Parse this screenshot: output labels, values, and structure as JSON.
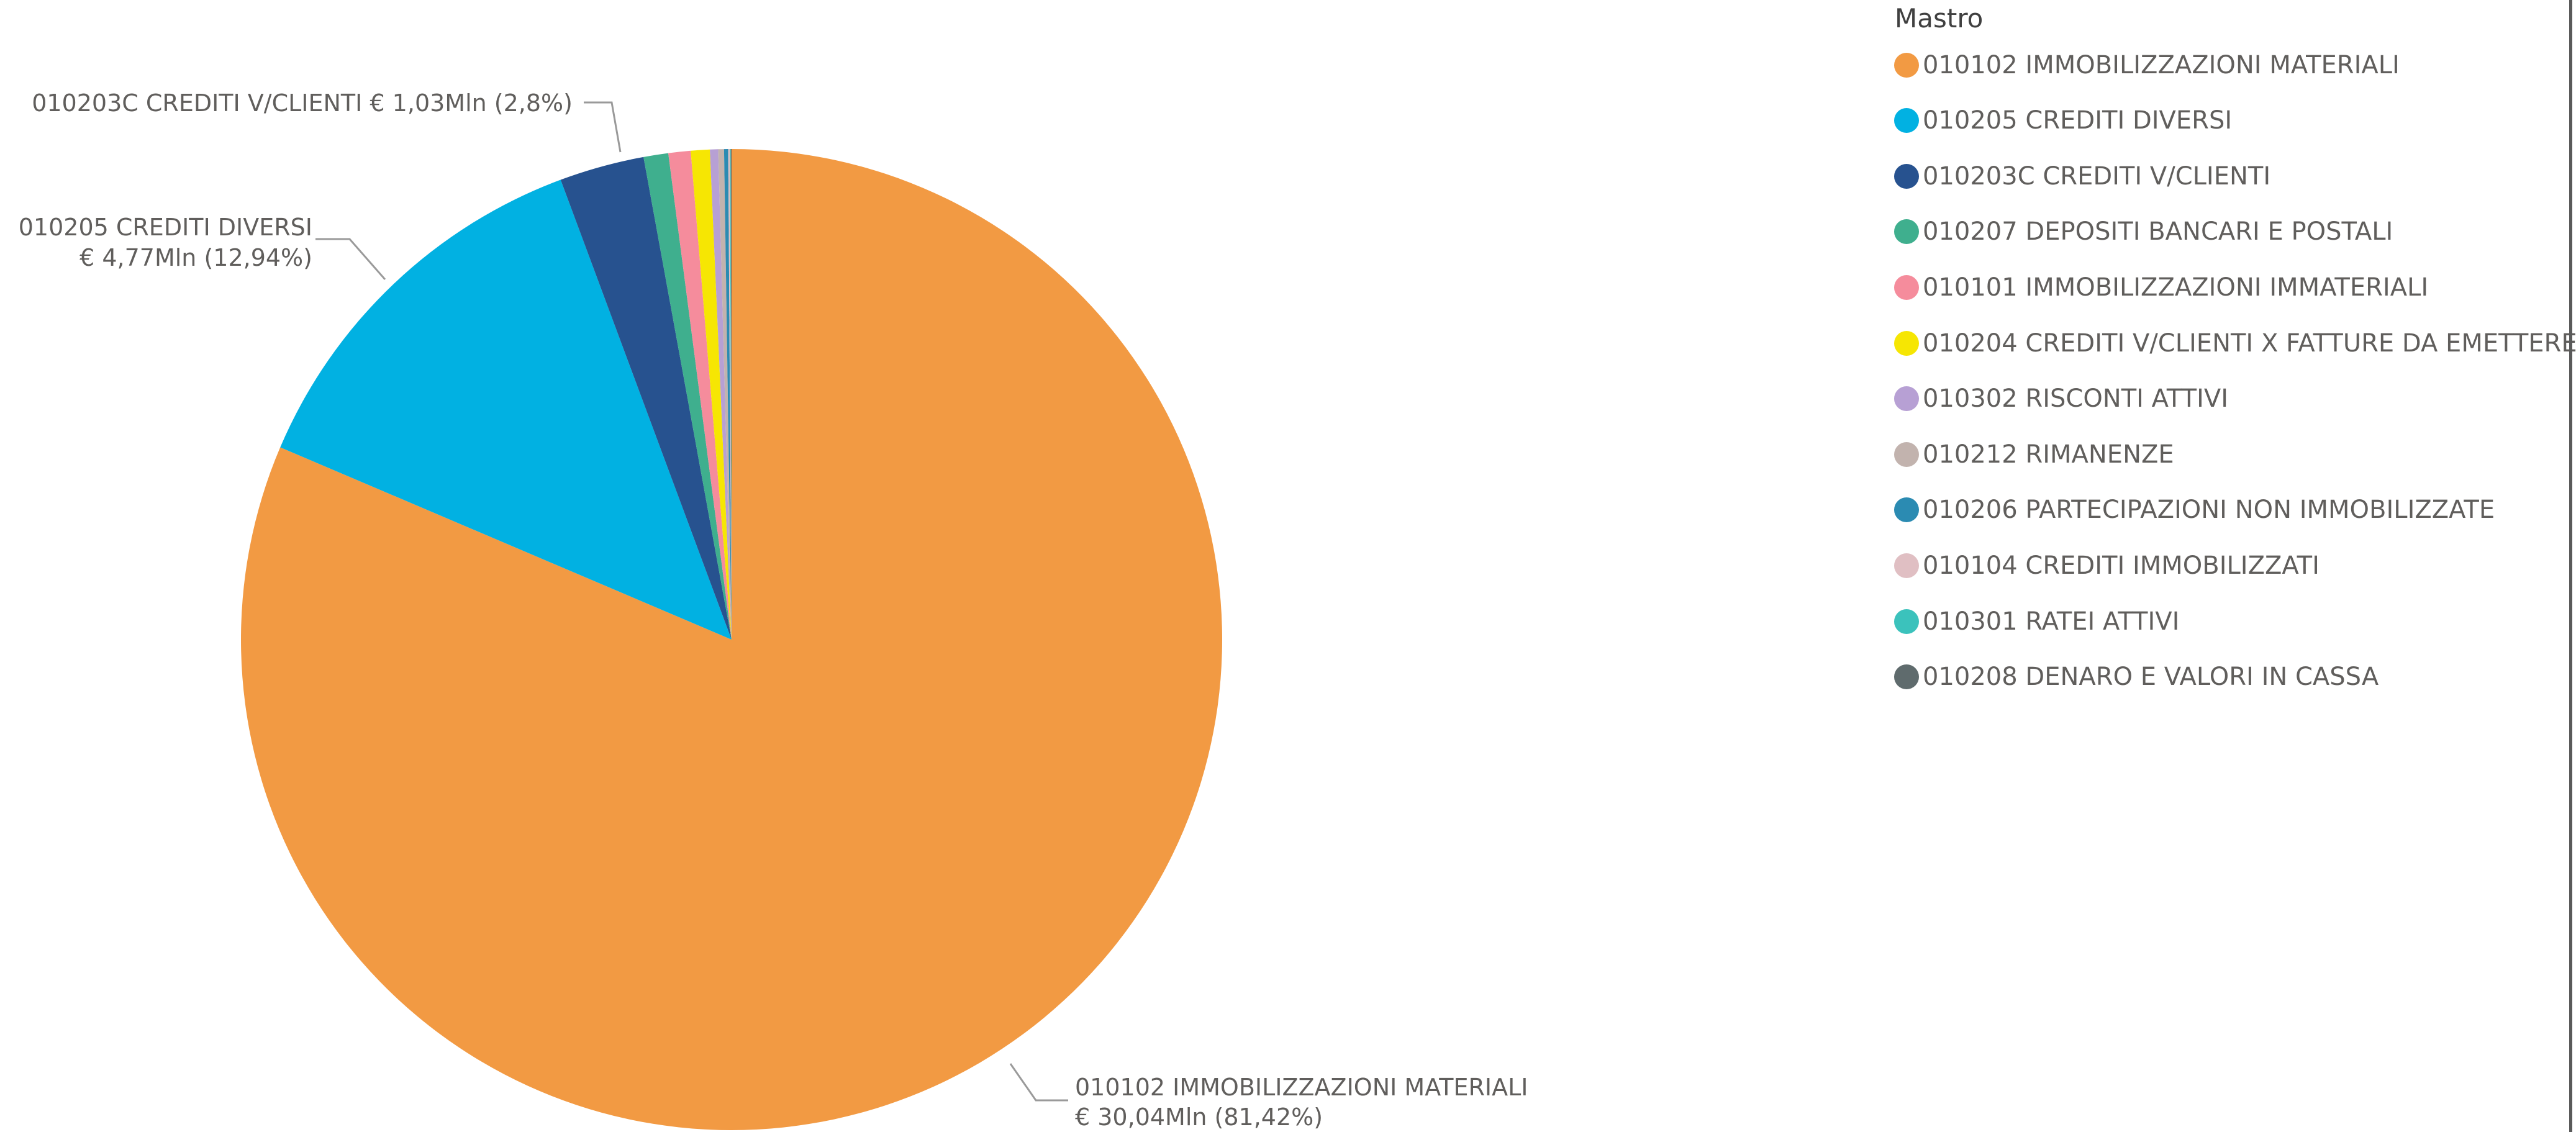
{
  "chart_data": {
    "type": "pie",
    "legend_title": "Mastro",
    "legend_position": "right",
    "slices": [
      {
        "label": "010102  IMMOBILIZZAZIONI MATERIALI",
        "value": 30.04,
        "percent": 81.42,
        "color": "#F29A43"
      },
      {
        "label": "010205  CREDITI DIVERSI",
        "value": 4.77,
        "percent": 12.94,
        "color": "#01B1E2"
      },
      {
        "label": "010203C CREDITI V/CLIENTI",
        "value": 1.03,
        "percent": 2.8,
        "color": "#27528F"
      },
      {
        "label": "010207  DEPOSITI BANCARI E POSTALI",
        "value": 0.3,
        "percent": 0.8,
        "color": "#3FAF8E"
      },
      {
        "label": "010101  IMMOBILIZZAZIONI IMMATERIALI",
        "value": 0.27,
        "percent": 0.72,
        "color": "#F58C9C"
      },
      {
        "label": "010204  CREDITI V/CLIENTI X FATTURE DA EMETTERE",
        "value": 0.23,
        "percent": 0.62,
        "color": "#F6E603"
      },
      {
        "label": "010302  RISCONTI ATTIVI",
        "value": 0.1,
        "percent": 0.27,
        "color": "#B7A0D4"
      },
      {
        "label": "010212  RIMANENZE",
        "value": 0.07,
        "percent": 0.19,
        "color": "#C2B3AE"
      },
      {
        "label": "010206  PARTECIPAZIONI NON IMMOBILIZZATE",
        "value": 0.05,
        "percent": 0.13,
        "color": "#2B8BB2"
      },
      {
        "label": "010104  CREDITI IMMOBILIZZATI",
        "value": 0.02,
        "percent": 0.05,
        "color": "#E0BFC3"
      },
      {
        "label": "010301  RATEI ATTIVI",
        "value": 0.01,
        "percent": 0.03,
        "color": "#3BC2BC"
      },
      {
        "label": "010208  DENARO E VALORI IN CASSA",
        "value": 0.01,
        "percent": 0.02,
        "color": "#5F6B6D"
      }
    ],
    "data_labels": [
      {
        "lines": [
          "010203C CREDITI V/CLIENTI € 1,03Mln (2,8%)"
        ]
      },
      {
        "lines": [
          "010205 CREDITI DIVERSI",
          "€ 4,77Mln (12,94%)"
        ]
      },
      {
        "lines": [
          "010102 IMMOBILIZZAZIONI MATERIALI",
          "€ 30,04Mln (81,42%)"
        ]
      }
    ]
  }
}
